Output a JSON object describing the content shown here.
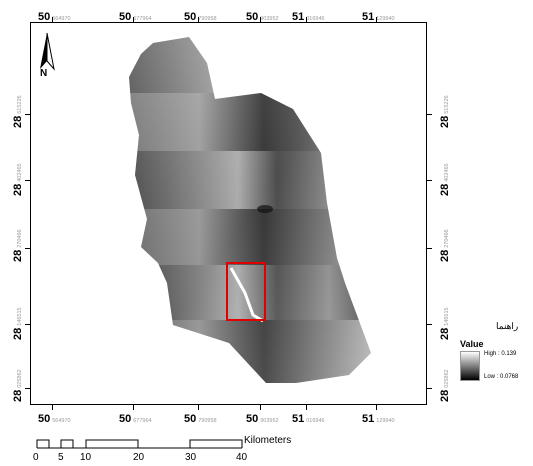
{
  "map": {
    "north_label": "N",
    "graticule": {
      "top": [
        {
          "deg": "50",
          "min": "564970"
        },
        {
          "deg": "50",
          "min": "677964"
        },
        {
          "deg": "50",
          "min": "790958"
        },
        {
          "deg": "50",
          "min": "903952"
        },
        {
          "deg": "51",
          "min": "016946"
        },
        {
          "deg": "51",
          "min": "129940"
        }
      ],
      "bottom": [
        {
          "deg": "50",
          "min": "564970"
        },
        {
          "deg": "50",
          "min": "677964"
        },
        {
          "deg": "50",
          "min": "790958"
        },
        {
          "deg": "50",
          "min": "903952"
        },
        {
          "deg": "51",
          "min": "016946"
        },
        {
          "deg": "51",
          "min": "129940"
        }
      ],
      "left": [
        {
          "deg": "28",
          "min": "515226"
        },
        {
          "deg": "28",
          "min": "402465"
        },
        {
          "deg": "28",
          "min": "270466"
        },
        {
          "deg": "28",
          "min": "146515"
        },
        {
          "deg": "28",
          "min": "025862"
        }
      ],
      "right": [
        {
          "deg": "28",
          "min": "515226"
        },
        {
          "deg": "28",
          "min": "402465"
        },
        {
          "deg": "28",
          "min": "270466"
        },
        {
          "deg": "28",
          "min": "146515"
        },
        {
          "deg": "28",
          "min": "025862"
        }
      ]
    },
    "study_area_box_color": "#e00000"
  },
  "legend": {
    "title": "راهنما",
    "value_label": "Value",
    "high_label": "High : 0.139",
    "low_label": "Low : 0.0768"
  },
  "scale_bar": {
    "unit": "Kilometers",
    "ticks": [
      "0",
      "5",
      "10",
      "20",
      "30",
      "40"
    ]
  }
}
